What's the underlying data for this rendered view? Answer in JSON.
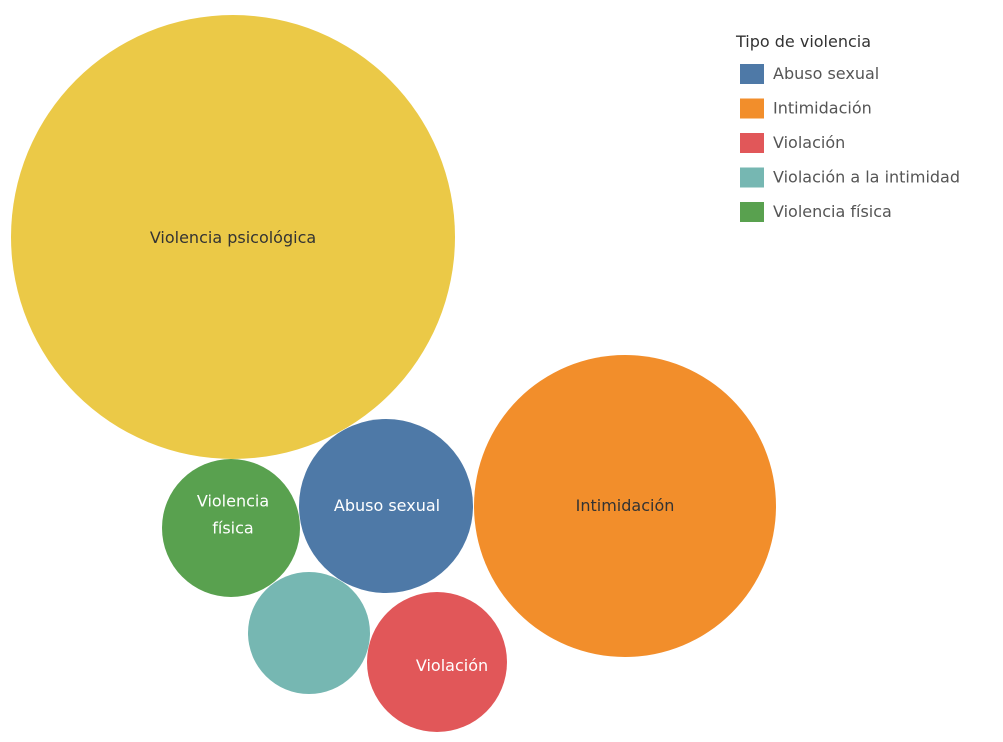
{
  "chart_data": {
    "type": "bubble",
    "legend": {
      "title": "Tipo de violencia",
      "placement": "top-right"
    },
    "series": [
      {
        "name": "Violencia psicológica",
        "color": "#EBC947",
        "label_lines": [
          "Violencia psicológica"
        ],
        "label_color": "#333333",
        "relative_size": 1.0
      },
      {
        "name": "Intimidación",
        "color": "#F28E2B",
        "label_lines": [
          "Intimidación"
        ],
        "label_color": "#333333",
        "relative_size": 0.46
      },
      {
        "name": "Abuso sexual",
        "color": "#4E79A7",
        "label_lines": [
          "Abuso sexual"
        ],
        "label_color": "#ffffff",
        "relative_size": 0.15
      },
      {
        "name": "Violación",
        "color": "#E15759",
        "label_lines": [
          "Violación"
        ],
        "label_color": "#ffffff",
        "relative_size": 0.12
      },
      {
        "name": "Violencia física",
        "color": "#59A14F",
        "label_lines": [
          "Violencia",
          "física"
        ],
        "label_color": "#ffffff",
        "relative_size": 0.096
      },
      {
        "name": "Violación a la intimidad",
        "color": "#76B7B2",
        "label_lines": [],
        "label_color": "#ffffff",
        "relative_size": 0.074
      }
    ],
    "legend_order": [
      "Abuso sexual",
      "Intimidación",
      "Violación",
      "Violación a la intimidad",
      "Violencia física"
    ]
  }
}
